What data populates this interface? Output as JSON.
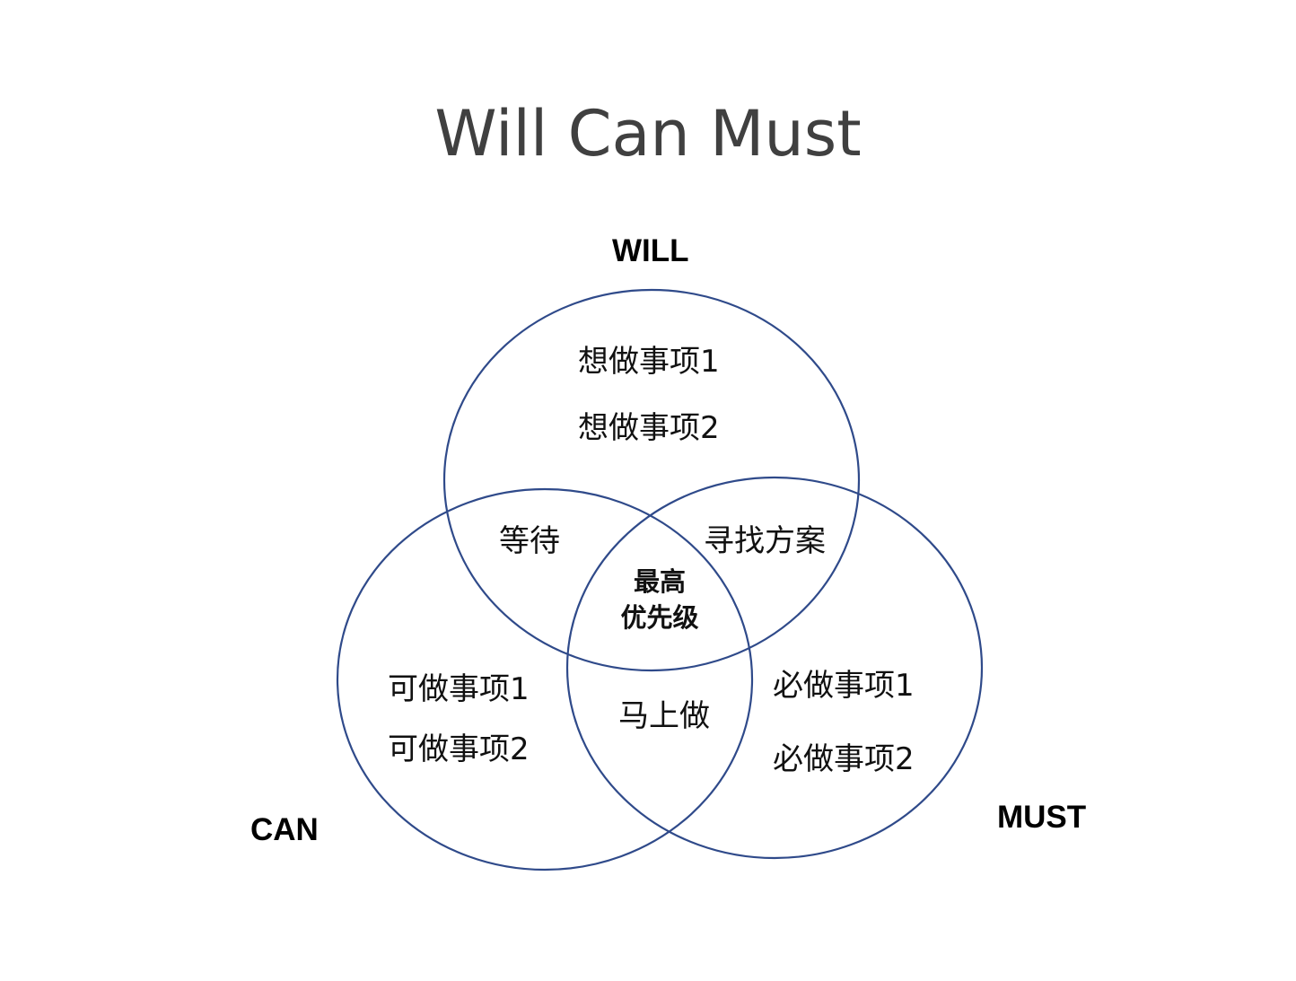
{
  "title": "Will Can Must",
  "sets": {
    "will": "WILL",
    "can": "CAN",
    "must": "MUST"
  },
  "regions": {
    "will_only": [
      "想做事项1",
      "想做事项2"
    ],
    "can_only": [
      "可做事项1",
      "可做事项2"
    ],
    "must_only": [
      "必做事项1",
      "必做事项2"
    ],
    "will_can": "等待",
    "will_must": "寻找方案",
    "can_must": "马上做",
    "all_three": [
      "最高",
      "优先级"
    ]
  },
  "colors": {
    "circle_stroke": "#2f4a8a",
    "title": "#404040"
  }
}
